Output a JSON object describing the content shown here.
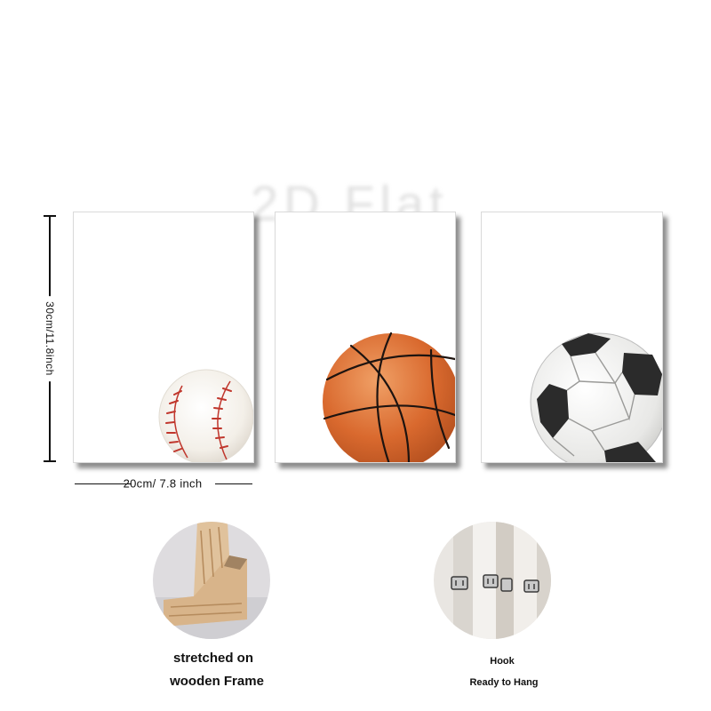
{
  "watermark": "2D Flat",
  "dimensions": {
    "height_label": "30cm/11.8inch",
    "width_label": "20cm/ 7.8 inch"
  },
  "panels": [
    {
      "subject": "baseball",
      "icon": "baseball-icon"
    },
    {
      "subject": "basketball",
      "icon": "basketball-icon"
    },
    {
      "subject": "soccer ball",
      "icon": "soccer-ball-icon"
    }
  ],
  "details": {
    "frame": {
      "line1": "stretched on",
      "line2": "wooden Frame",
      "icon": "wooden-frame-photo"
    },
    "hook": {
      "line1": "Hook",
      "line2": "Ready to Hang",
      "icon": "hook-photo"
    }
  },
  "colors": {
    "basketball": "#d9692e",
    "baseball_stitch": "#c0362c",
    "soccer_dark": "#2b2b2b",
    "wood": "#d8b48a"
  }
}
